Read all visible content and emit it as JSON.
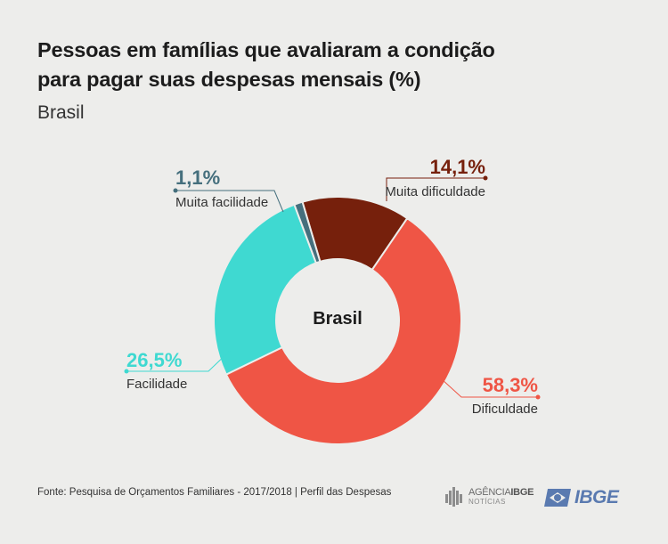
{
  "header": {
    "title_line1": "Pessoas em famílias que avaliaram a condição",
    "title_line2": "para pagar suas despesas mensais (%)",
    "subtitle": "Brasil"
  },
  "chart_data": {
    "type": "pie",
    "center_label": "Brasil",
    "slices": [
      {
        "label": "Muita dificuldade",
        "value": 14.1,
        "value_label": "14,1%",
        "color": "#76200c"
      },
      {
        "label": "Dificuldade",
        "value": 58.3,
        "value_label": "58,3%",
        "color": "#ef5545"
      },
      {
        "label": "Facilidade",
        "value": 26.5,
        "value_label": "26,5%",
        "color": "#3fd9d1"
      },
      {
        "label": "Muita facilidade",
        "value": 1.1,
        "value_label": "1,1%",
        "color": "#456f7d"
      }
    ]
  },
  "footer": {
    "source": "Fonte: Pesquisa de Orçamentos Familiares - 2017/2018 | Perfil das Despesas",
    "agencia_prefix": "AGÊNCIA",
    "agencia_brand": "IBGE",
    "agencia_sub": "NOTÍCIAS",
    "ibge_logo": "IBGE"
  }
}
